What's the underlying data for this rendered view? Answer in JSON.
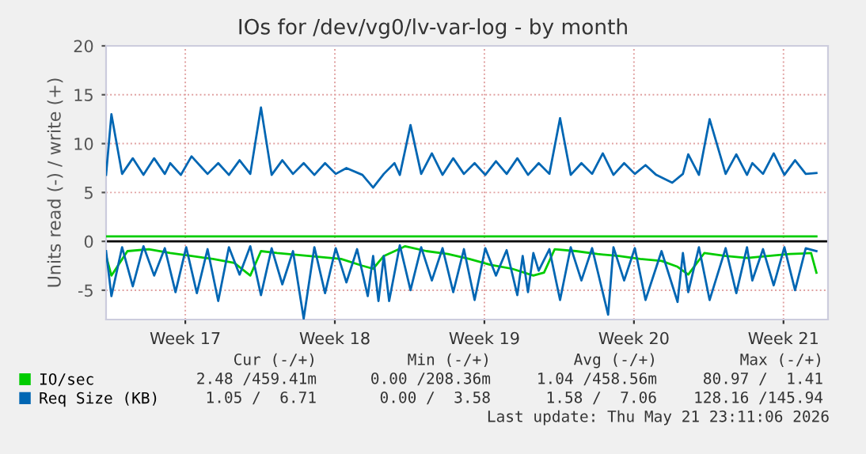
{
  "chart_data": {
    "type": "line",
    "title": "IOs for /dev/vg0/lv-var-log - by month",
    "ylabel": "Units read (-) / write (+)",
    "xlim": [
      "2026-04-20T00:00",
      "2026-05-23T19:00"
    ],
    "xticks": [
      {
        "value": "2026-04-23T17:00",
        "label": "Week 17"
      },
      {
        "value": "2026-04-30T17:00",
        "label": "Week 18"
      },
      {
        "value": "2026-05-07T17:00",
        "label": "Week 19"
      },
      {
        "value": "2026-05-14T17:00",
        "label": "Week 20"
      },
      {
        "value": "2026-05-21T17:00",
        "label": "Week 21"
      }
    ],
    "ylim": [
      -8,
      20
    ],
    "yticks": [
      -5,
      0,
      5,
      10,
      15,
      20
    ],
    "grid": true,
    "legend": "bottom left",
    "ref_lines": [
      {
        "axis": "y",
        "value": 0,
        "color": "#000000"
      }
    ],
    "series": [
      {
        "color": "#00cc00",
        "x": [
          "2026-04-20T00:00",
          "2026-04-20T06:00",
          "2026-04-21T00:00",
          "2026-04-22T00:00",
          "2026-04-23T00:00",
          "2026-04-24T00:00",
          "2026-04-25T00:00",
          "2026-04-26T00:00",
          "2026-04-26T18:00",
          "2026-04-27T06:00",
          "2026-04-28T00:00",
          "2026-04-29T00:00",
          "2026-04-30T00:00",
          "2026-05-01T00:00",
          "2026-05-02T00:00",
          "2026-05-02T12:00",
          "2026-05-03T00:00",
          "2026-05-04T00:00",
          "2026-05-05T00:00",
          "2026-05-06T00:00",
          "2026-05-07T00:00",
          "2026-05-08T00:00",
          "2026-05-09T00:00",
          "2026-05-10T00:00",
          "2026-05-10T12:00",
          "2026-05-11T00:00",
          "2026-05-12T00:00",
          "2026-05-13T00:00",
          "2026-05-14T00:00",
          "2026-05-15T00:00",
          "2026-05-16T00:00",
          "2026-05-16T18:00",
          "2026-05-17T06:00",
          "2026-05-18T00:00",
          "2026-05-19T00:00",
          "2026-05-20T00:00",
          "2026-05-21T00:00",
          "2026-05-22T00:00",
          "2026-05-23T00:00",
          "2026-05-23T06:00"
        ],
        "values": [
          -1.5,
          -3.5,
          -1,
          -0.8,
          -1.2,
          -1.5,
          -1.8,
          -2.2,
          -3.5,
          -1.0,
          -1.2,
          -1.4,
          -1.6,
          -1.8,
          -2.5,
          -2.8,
          -1.5,
          -0.5,
          -1.0,
          -1.3,
          -1.8,
          -2.4,
          -2.8,
          -3.5,
          -3.2,
          -0.8,
          -1.0,
          -1.3,
          -1.5,
          -1.8,
          -2.0,
          -2.6,
          -3.4,
          -1.2,
          -1.5,
          -1.7,
          -1.5,
          -1.3,
          -1.2,
          -3.2
        ]
      },
      {
        "name": "IO/sec",
        "color": "#00cc00",
        "x": [
          "2026-04-20T00:00",
          "2026-05-23T06:00"
        ],
        "values": [
          0.5,
          0.5
        ]
      },
      {
        "color": "#0066b3",
        "x": [
          "2026-04-20T00:00",
          "2026-04-20T06:00",
          "2026-04-20T18:00",
          "2026-04-21T06:00",
          "2026-04-21T18:00",
          "2026-04-22T06:00",
          "2026-04-22T18:00",
          "2026-04-23T06:00",
          "2026-04-23T18:00",
          "2026-04-24T06:00",
          "2026-04-24T18:00",
          "2026-04-25T06:00",
          "2026-04-25T18:00",
          "2026-04-26T06:00",
          "2026-04-26T18:00",
          "2026-04-27T06:00",
          "2026-04-27T18:00",
          "2026-04-28T06:00",
          "2026-04-28T18:00",
          "2026-04-29T06:00",
          "2026-04-29T18:00",
          "2026-04-30T06:00",
          "2026-04-30T18:00",
          "2026-05-01T06:00",
          "2026-05-01T18:00",
          "2026-05-02T06:00",
          "2026-05-02T12:00",
          "2026-05-02T18:00",
          "2026-05-03T00:00",
          "2026-05-03T06:00",
          "2026-05-03T18:00",
          "2026-05-04T06:00",
          "2026-05-04T18:00",
          "2026-05-05T06:00",
          "2026-05-05T18:00",
          "2026-05-06T06:00",
          "2026-05-06T18:00",
          "2026-05-07T06:00",
          "2026-05-07T18:00",
          "2026-05-08T06:00",
          "2026-05-08T18:00",
          "2026-05-09T06:00",
          "2026-05-09T12:00",
          "2026-05-09T18:00",
          "2026-05-10T00:00",
          "2026-05-10T06:00",
          "2026-05-10T18:00",
          "2026-05-11T06:00",
          "2026-05-11T18:00",
          "2026-05-12T06:00",
          "2026-05-12T18:00",
          "2026-05-13T12:00",
          "2026-05-13T18:00",
          "2026-05-14T06:00",
          "2026-05-14T18:00",
          "2026-05-15T06:00",
          "2026-05-16T00:00",
          "2026-05-16T18:00",
          "2026-05-17T00:00",
          "2026-05-17T06:00",
          "2026-05-17T18:00",
          "2026-05-18T06:00",
          "2026-05-19T00:00",
          "2026-05-19T12:00",
          "2026-05-20T00:00",
          "2026-05-20T06:00",
          "2026-05-20T18:00",
          "2026-05-21T06:00",
          "2026-05-21T18:00",
          "2026-05-22T06:00",
          "2026-05-22T18:00",
          "2026-05-23T06:00"
        ],
        "values": [
          -1,
          -5.6,
          -0.6,
          -4.6,
          -0.5,
          -3.5,
          -0.7,
          -5.2,
          -0.6,
          -5.3,
          -0.8,
          -6.1,
          -0.6,
          -3.4,
          -0.5,
          -5.5,
          -0.7,
          -4.4,
          -1.0,
          -7.9,
          -0.6,
          -5.3,
          -0.7,
          -4.2,
          -0.8,
          -5.6,
          -1.5,
          -6.1,
          -1.5,
          -6.1,
          -0.4,
          -5.0,
          -0.6,
          -4.0,
          -0.7,
          -5.2,
          -0.8,
          -6.0,
          -0.7,
          -3.5,
          -0.9,
          -5.5,
          -1.5,
          -5.2,
          -1.2,
          -3.0,
          -0.8,
          -6.0,
          -0.6,
          -4.0,
          -0.7,
          -7.5,
          -0.6,
          -4.0,
          -0.7,
          -6.0,
          -1.0,
          -6.2,
          -1.2,
          -5.2,
          -0.6,
          -6.0,
          -0.7,
          -5.3,
          -0.6,
          -4.0,
          -0.8,
          -4.5,
          -0.6,
          -5.0,
          -0.7,
          -1.0
        ]
      },
      {
        "name": "Req Size (KB)",
        "color": "#0066b3",
        "x": [
          "2026-04-20T00:00",
          "2026-04-20T06:00",
          "2026-04-20T18:00",
          "2026-04-21T06:00",
          "2026-04-21T18:00",
          "2026-04-22T06:00",
          "2026-04-22T18:00",
          "2026-04-23T00:00",
          "2026-04-23T12:00",
          "2026-04-24T00:00",
          "2026-04-24T18:00",
          "2026-04-25T06:00",
          "2026-04-25T18:00",
          "2026-04-26T06:00",
          "2026-04-26T18:00",
          "2026-04-27T06:00",
          "2026-04-27T18:00",
          "2026-04-28T06:00",
          "2026-04-28T18:00",
          "2026-04-29T06:00",
          "2026-04-29T18:00",
          "2026-04-30T06:00",
          "2026-04-30T18:00",
          "2026-05-01T06:00",
          "2026-05-02T00:00",
          "2026-05-02T12:00",
          "2026-05-03T00:00",
          "2026-05-03T12:00",
          "2026-05-03T18:00",
          "2026-05-04T06:00",
          "2026-05-04T18:00",
          "2026-05-05T06:00",
          "2026-05-05T18:00",
          "2026-05-06T06:00",
          "2026-05-06T18:00",
          "2026-05-07T06:00",
          "2026-05-07T18:00",
          "2026-05-08T06:00",
          "2026-05-08T18:00",
          "2026-05-09T06:00",
          "2026-05-09T18:00",
          "2026-05-10T06:00",
          "2026-05-10T18:00",
          "2026-05-11T06:00",
          "2026-05-11T18:00",
          "2026-05-12T06:00",
          "2026-05-12T18:00",
          "2026-05-13T06:00",
          "2026-05-13T18:00",
          "2026-05-14T06:00",
          "2026-05-14T18:00",
          "2026-05-15T06:00",
          "2026-05-15T18:00",
          "2026-05-16T12:00",
          "2026-05-17T00:00",
          "2026-05-17T06:00",
          "2026-05-17T18:00",
          "2026-05-18T06:00",
          "2026-05-19T00:00",
          "2026-05-19T12:00",
          "2026-05-20T00:00",
          "2026-05-20T06:00",
          "2026-05-20T18:00",
          "2026-05-21T06:00",
          "2026-05-21T18:00",
          "2026-05-22T06:00",
          "2026-05-22T18:00",
          "2026-05-23T06:00"
        ],
        "values": [
          6.8,
          13.0,
          6.9,
          8.5,
          6.8,
          8.5,
          6.9,
          8.0,
          6.8,
          8.7,
          6.9,
          8.0,
          6.8,
          8.3,
          6.9,
          13.7,
          6.8,
          8.3,
          6.9,
          8.0,
          6.8,
          8.0,
          6.9,
          7.5,
          6.8,
          5.5,
          6.9,
          8.0,
          6.8,
          11.9,
          6.9,
          9.0,
          6.8,
          8.5,
          6.9,
          8.0,
          6.8,
          8.2,
          6.9,
          8.5,
          6.8,
          8.0,
          6.9,
          12.6,
          6.8,
          8.0,
          6.9,
          9.0,
          6.8,
          8.0,
          6.9,
          7.8,
          6.8,
          6.0,
          6.9,
          8.9,
          6.8,
          12.5,
          6.9,
          8.9,
          6.8,
          8.0,
          6.9,
          9.0,
          6.8,
          8.3,
          6.9,
          7.0
        ]
      }
    ],
    "annotations": [
      "Cur (-/+)",
      "Min (-/+)",
      "Avg (-/+)",
      "Max (-/+)",
      "2.48 /459.41m",
      "0.00 /208.36m",
      "1.04 /458.56m",
      "80.97 /  1.41",
      "1.05 /  6.71",
      "0.00 /  3.58",
      "1.58 /  7.06",
      "128.16 /145.94",
      "Last update: Thu May 21 23:11:06 2026"
    ]
  }
}
